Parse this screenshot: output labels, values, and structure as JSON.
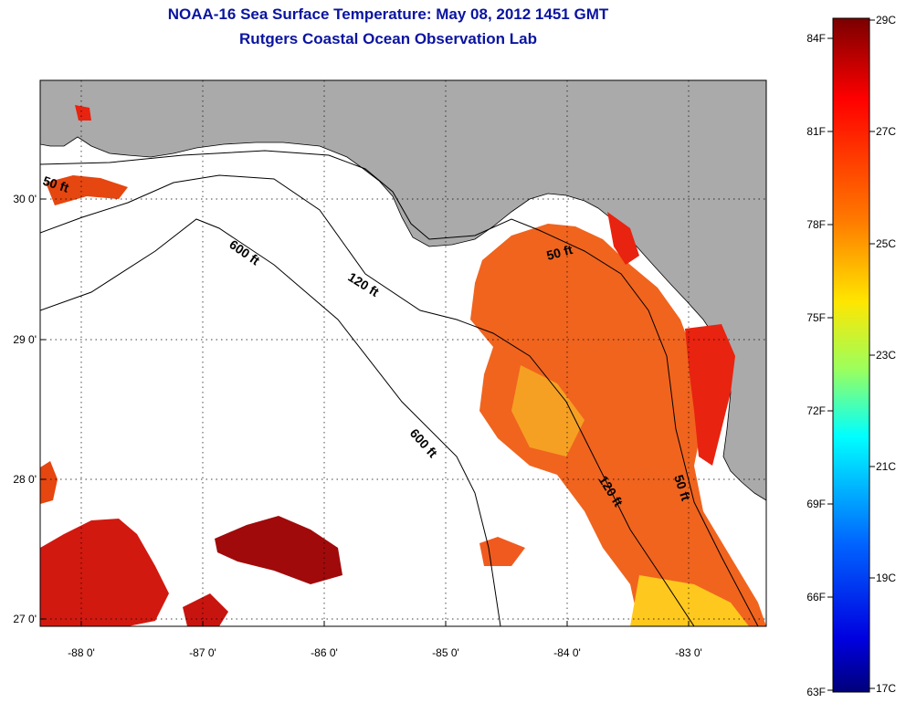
{
  "title": "NOAA-16 Sea Surface Temperature:  May 08, 2012 1451 GMT",
  "subtitle": "Rutgers Coastal Ocean Observation Lab",
  "map": {
    "lon_ticks": [
      "-88 0'",
      "-87 0'",
      "-86 0'",
      "-85 0'",
      "-84 0'",
      "-83 0'"
    ],
    "lat_ticks": [
      "30 0'",
      "29 0'",
      "28 0'",
      "27 0'"
    ],
    "contour_labels": [
      "50 ft",
      "600 ft",
      "120 ft",
      "50 ft",
      "600 ft",
      "120 ft",
      "50 ft"
    ],
    "colors": {
      "land": "#aaaaaa",
      "no_data": "#ffffff"
    }
  },
  "colorbar": {
    "fahrenheit": [
      "84F",
      "81F",
      "78F",
      "75F",
      "72F",
      "69F",
      "66F",
      "63F"
    ],
    "celsius": [
      "29C",
      "27C",
      "25C",
      "23C",
      "21C",
      "19C",
      "17C"
    ],
    "gradient": [
      "#800000",
      "#ff0000",
      "#ff8000",
      "#ffff00",
      "#80ff80",
      "#00ffff",
      "#0080ff",
      "#0000ff",
      "#000080"
    ]
  }
}
